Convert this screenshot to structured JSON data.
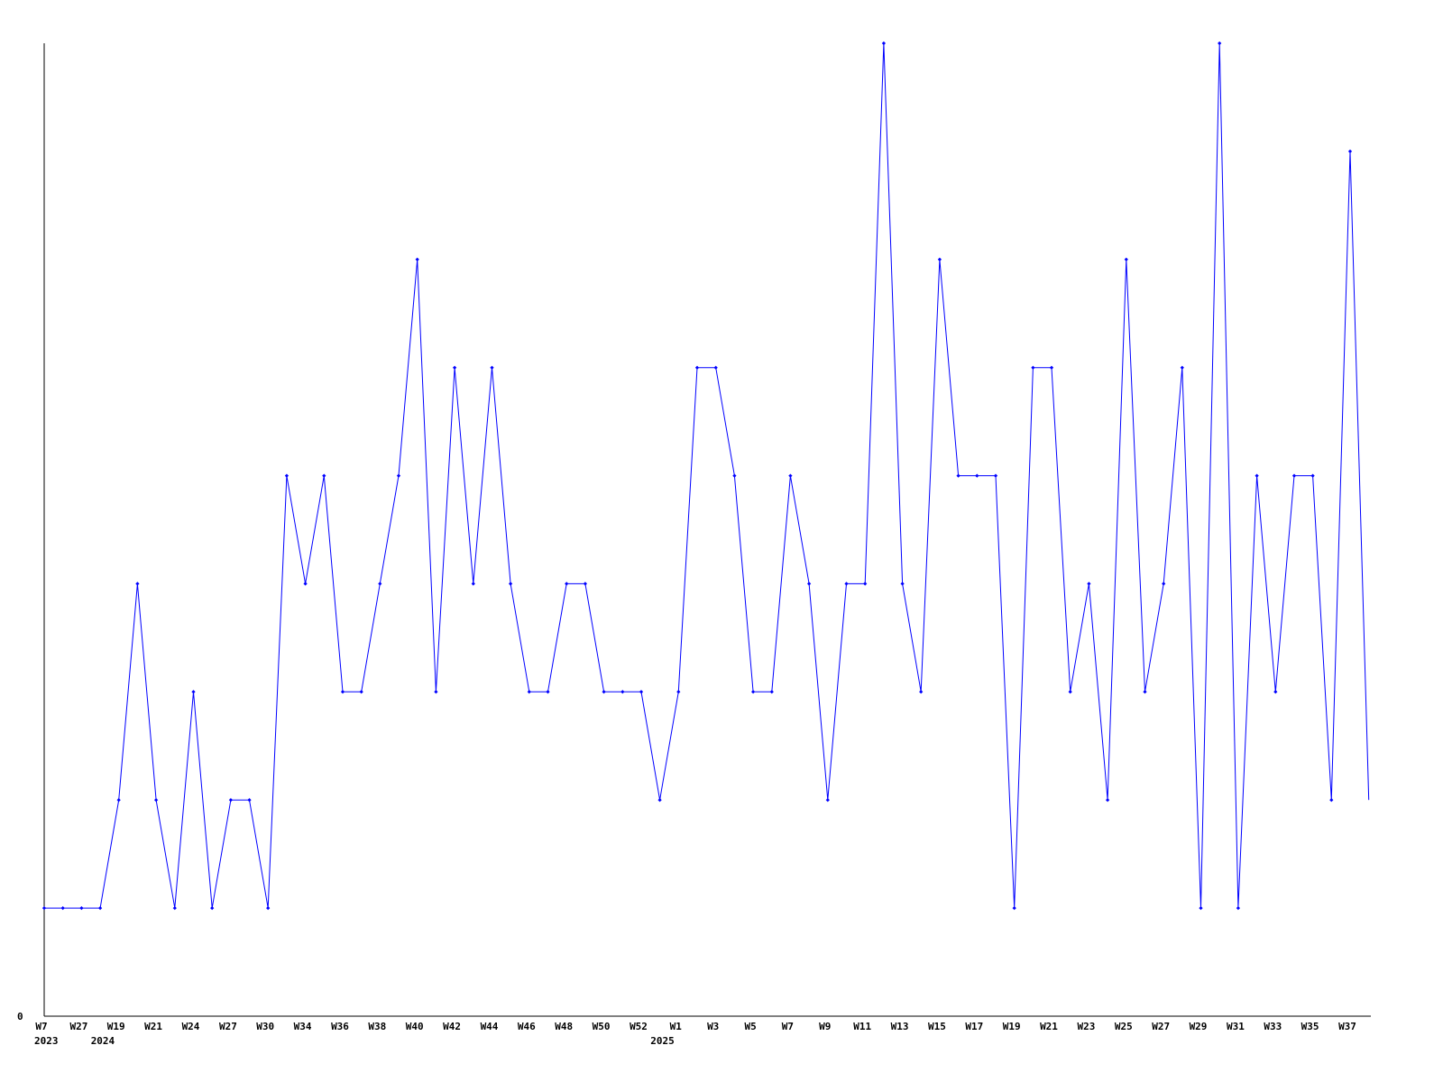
{
  "chart_data": {
    "type": "line",
    "title": "",
    "xlabel": "",
    "ylabel": "",
    "y_tick_labels": [
      "0"
    ],
    "ylim": [
      0,
      9
    ],
    "grid": false,
    "line_color": "#0000ff",
    "axis_color": "#000000",
    "values": [
      1,
      1,
      1,
      1,
      2,
      4,
      2,
      1,
      3,
      1,
      2,
      2,
      1,
      5,
      4,
      5,
      3,
      3,
      4,
      5,
      7,
      3,
      6,
      4,
      6,
      4,
      3,
      3,
      4,
      4,
      3,
      3,
      3,
      2,
      3,
      6,
      6,
      5,
      3,
      3,
      5,
      4,
      2,
      4,
      4,
      9,
      4,
      3,
      7,
      5,
      5,
      5,
      1,
      6,
      6,
      3,
      4,
      2,
      7,
      3,
      4,
      6,
      1,
      9,
      1,
      5,
      3,
      5,
      5,
      2,
      8,
      2
    ],
    "x_tick_labels": [
      {
        "index": 0,
        "label": "W7"
      },
      {
        "index": 2,
        "label": "W27"
      },
      {
        "index": 4,
        "label": "W19"
      },
      {
        "index": 6,
        "label": "W21"
      },
      {
        "index": 8,
        "label": "W24"
      },
      {
        "index": 10,
        "label": "W27"
      },
      {
        "index": 12,
        "label": "W30"
      },
      {
        "index": 14,
        "label": "W34"
      },
      {
        "index": 16,
        "label": "W36"
      },
      {
        "index": 18,
        "label": "W38"
      },
      {
        "index": 20,
        "label": "W40"
      },
      {
        "index": 22,
        "label": "W42"
      },
      {
        "index": 24,
        "label": "W44"
      },
      {
        "index": 26,
        "label": "W46"
      },
      {
        "index": 28,
        "label": "W48"
      },
      {
        "index": 30,
        "label": "W50"
      },
      {
        "index": 32,
        "label": "W52"
      },
      {
        "index": 34,
        "label": "W1"
      },
      {
        "index": 36,
        "label": "W3"
      },
      {
        "index": 38,
        "label": "W5"
      },
      {
        "index": 40,
        "label": "W7"
      },
      {
        "index": 42,
        "label": "W9"
      },
      {
        "index": 44,
        "label": "W11"
      },
      {
        "index": 46,
        "label": "W13"
      },
      {
        "index": 48,
        "label": "W15"
      },
      {
        "index": 50,
        "label": "W17"
      },
      {
        "index": 52,
        "label": "W19"
      },
      {
        "index": 54,
        "label": "W21"
      },
      {
        "index": 56,
        "label": "W23"
      },
      {
        "index": 58,
        "label": "W25"
      },
      {
        "index": 60,
        "label": "W27"
      },
      {
        "index": 62,
        "label": "W29"
      },
      {
        "index": 64,
        "label": "W31"
      },
      {
        "index": 66,
        "label": "W33"
      },
      {
        "index": 68,
        "label": "W35"
      },
      {
        "index": 70,
        "label": "W37"
      }
    ],
    "year_labels": [
      {
        "index": 0,
        "label": "2023"
      },
      {
        "index": 4,
        "label": "2024"
      },
      {
        "index": 34,
        "label": "2025"
      }
    ]
  }
}
